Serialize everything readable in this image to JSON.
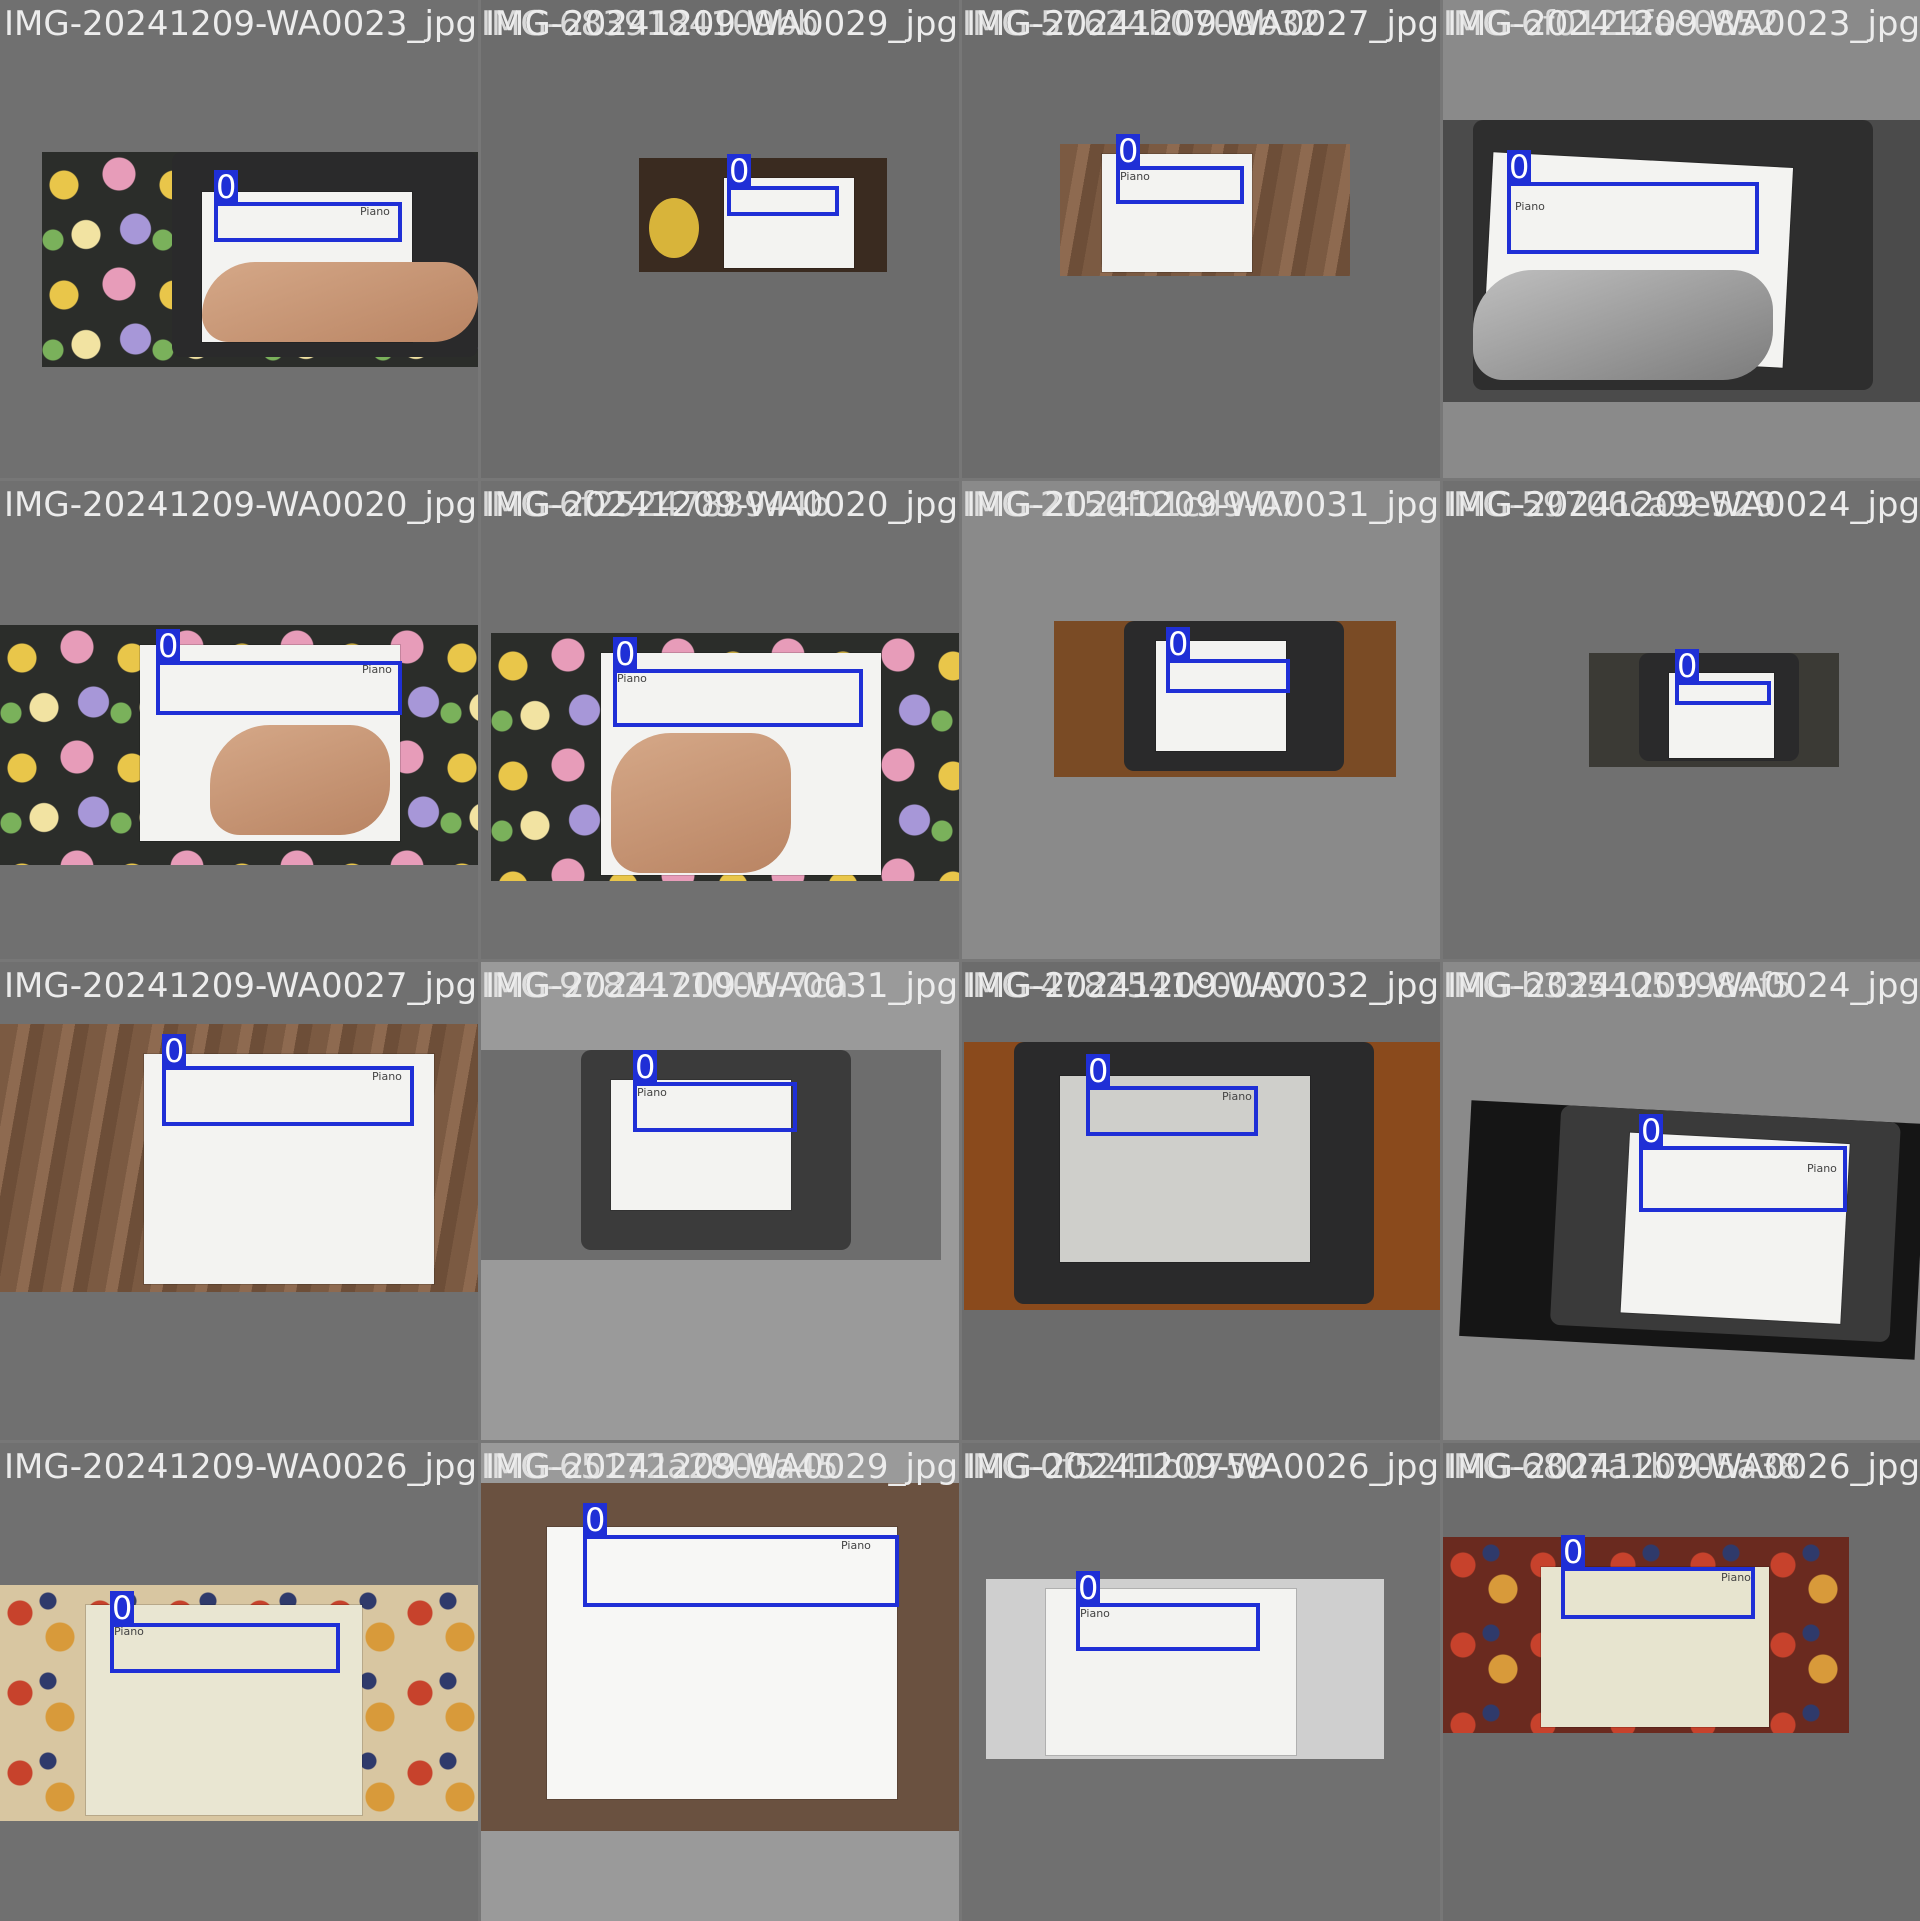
{
  "colors": {
    "box": "#1f2fd6",
    "label_text": "#ffffff",
    "filename_text": "#ececec"
  },
  "tiles": [
    {
      "filename": "IMG-20241209-WA0023_jpg",
      "filename_overlap": "",
      "label": "0",
      "scrawl": "Piano"
    },
    {
      "filename": "IMG-20241209-WA0029_jpg",
      "filename_overlap": "IMG-6839184109bb",
      "label": "0",
      "scrawl": ""
    },
    {
      "filename": "IMG-20241209-WA0027_jpg",
      "filename_overlap": "IMG-57624b0709b32",
      "label": "0",
      "scrawl": "Piano"
    },
    {
      "filename": "IMG-20241209-WA0023_jpg",
      "filename_overlap": "IMG-6f0124fac0852",
      "label": "0",
      "scrawl": "Piano"
    },
    {
      "filename": "IMG-20241209-WA0020_jpg",
      "filename_overlap": "",
      "label": "0",
      "scrawl": "Piano"
    },
    {
      "filename": "IMG-20241209-WA0020_jpg",
      "filename_overlap": "IMG-6f2524788944b",
      "label": "0",
      "scrawl": "Piano"
    },
    {
      "filename": "IMG-20241209-WA0031_jpg",
      "filename_overlap": "IMG-2150f01cd9-07",
      "label": "0",
      "scrawl": ""
    },
    {
      "filename": "IMG-20241209-WA0024_jpg",
      "filename_overlap": "IMG-59706ca9e529",
      "label": "0",
      "scrawl": ""
    },
    {
      "filename": "IMG-20241209-WA0027_jpg",
      "filename_overlap": "",
      "label": "0",
      "scrawl": "Piano"
    },
    {
      "filename": "IMG-20241209-WA0031_jpg",
      "filename_overlap": "IMG-9782471005-7ca",
      "label": "0",
      "scrawl": "Piano"
    },
    {
      "filename": "IMG-20241209-WA0032_jpg",
      "filename_overlap": "IMG-4782541c00-07",
      "label": "0",
      "scrawl": "Piano"
    },
    {
      "filename": "IMG-20241209-WA0024_jpg",
      "filename_overlap": "IMG-b3354051984f5",
      "label": "0",
      "scrawl": "Piano"
    },
    {
      "filename": "IMG-20241209-WA0026_jpg",
      "filename_overlap": "",
      "label": "0",
      "scrawl": "Piano"
    },
    {
      "filename": "IMG-20241209-WA0029_jpg",
      "filename_overlap": "IMG-65172a2809a45",
      "label": "0",
      "scrawl": "Piano"
    },
    {
      "filename": "IMG-20241209-WA0026_jpg",
      "filename_overlap": "IMG-0f5241b0759",
      "label": "0",
      "scrawl": "Piano"
    },
    {
      "filename": "IMG-20241209-WA0026_jpg",
      "filename_overlap": "IMG-6807a1b705a38",
      "label": "0",
      "scrawl": "Piano"
    }
  ]
}
